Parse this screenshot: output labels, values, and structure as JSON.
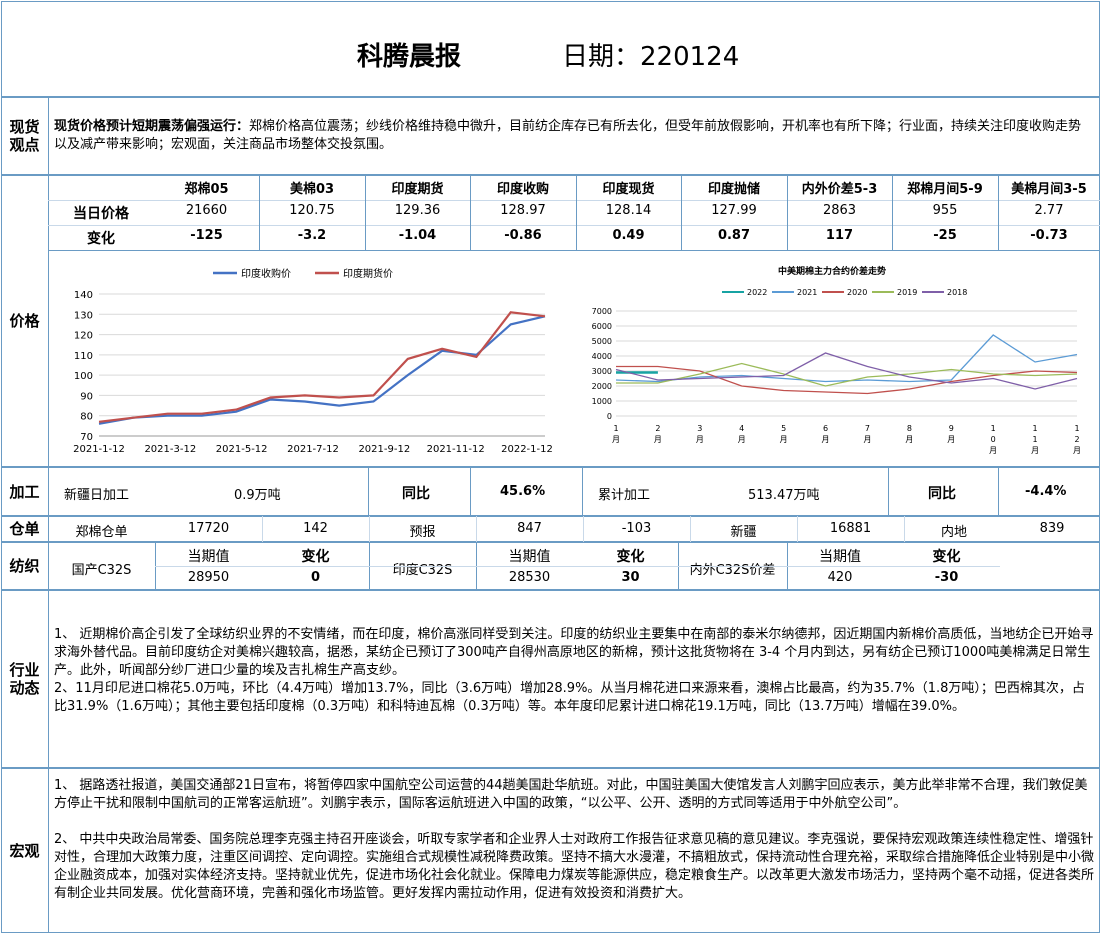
{
  "header": {
    "title": "科腾晨报",
    "date_label": "日期：220124"
  },
  "spot": {
    "label": "现货\n观点",
    "headline": "现货价格预计短期震荡偏强运行：",
    "text": "郑棉价格高位震荡；纱线价格维持稳中微升，目前纺企库存已有所去化，但受年前放假影响，开机率也有所下降；行业面，持续关注印度收购走势以及减产带来影响；宏观面，关注商品市场整体交投氛围。"
  },
  "price": {
    "label": "价格",
    "columns": [
      "郑棉05",
      "美棉03",
      "印度期货",
      "印度收购",
      "印度现货",
      "印度抛储",
      "内外价差5-3",
      "郑棉月间5-9",
      "美棉月间3-5"
    ],
    "row1_label": "当日价格",
    "row1": [
      "21660",
      "120.75",
      "129.36",
      "128.97",
      "128.14",
      "127.99",
      "2863",
      "955",
      "2.77"
    ],
    "row2_label": "变化",
    "row2": [
      "-125",
      "-3.2",
      "-1.04",
      "-0.86",
      "0.49",
      "0.87",
      "117",
      "-25",
      "-0.73"
    ]
  },
  "chart_data": [
    {
      "type": "line",
      "title": "",
      "legend_position": "top",
      "ylim": [
        70,
        140
      ],
      "yticks": [
        "70",
        "80",
        "90",
        "100",
        "110",
        "120",
        "130",
        "140"
      ],
      "xticks": [
        "2021-1-12",
        "2021-3-12",
        "2021-5-12",
        "2021-7-12",
        "2021-9-12",
        "2021-11-12",
        "2022-1-12"
      ],
      "x": [
        "2021-1-12",
        "2021-2-12",
        "2021-3-12",
        "2021-4-12",
        "2021-5-12",
        "2021-6-12",
        "2021-7-12",
        "2021-8-12",
        "2021-9-12",
        "2021-10-12",
        "2021-11-12",
        "2021-12-12",
        "2022-1-12",
        "2022-1-24"
      ],
      "series": [
        {
          "name": "印度收购价",
          "color": "#4472c4",
          "values": [
            76,
            79,
            80,
            80,
            82,
            88,
            87,
            85,
            87,
            100,
            112,
            110,
            125,
            129
          ]
        },
        {
          "name": "印度期货价",
          "color": "#c0504d",
          "values": [
            77,
            79,
            81,
            81,
            83,
            89,
            90,
            89,
            90,
            108,
            113,
            109,
            131,
            129
          ]
        }
      ]
    },
    {
      "type": "line",
      "title": "中美期棉主力合约价差走势",
      "legend_position": "top",
      "ylim": [
        0,
        7000
      ],
      "yticks": [
        "0",
        "1000",
        "2000",
        "3000",
        "4000",
        "5000",
        "6000",
        "7000"
      ],
      "xticks": [
        "1\n月",
        "2\n月",
        "3\n月",
        "4\n月",
        "5\n月",
        "6\n月",
        "7\n月",
        "8\n月",
        "9\n月",
        "1\n0\n月",
        "1\n1\n月",
        "1\n2\n月"
      ],
      "months": [
        1,
        2,
        3,
        4,
        5,
        6,
        7,
        8,
        9,
        10,
        11,
        12
      ],
      "series": [
        {
          "name": "2022",
          "color": "#17a3a3",
          "values": [
            2900,
            2900
          ]
        },
        {
          "name": "2021",
          "color": "#5b9bd5",
          "values": [
            2400,
            2300,
            2600,
            2700,
            2500,
            2300,
            2400,
            2300,
            2400,
            5400,
            3600,
            4100
          ]
        },
        {
          "name": "2020",
          "color": "#c0504d",
          "values": [
            3300,
            3300,
            3000,
            2000,
            1700,
            1600,
            1500,
            1800,
            2300,
            2700,
            3000,
            2900
          ]
        },
        {
          "name": "2019",
          "color": "#9bbb59",
          "values": [
            2200,
            2200,
            2800,
            3500,
            2800,
            2000,
            2600,
            2800,
            3100,
            2800,
            2700,
            2800
          ]
        },
        {
          "name": "2018",
          "color": "#7f5fa8",
          "values": [
            3100,
            2400,
            2500,
            2600,
            2700,
            4200,
            3300,
            2600,
            2200,
            2500,
            1800,
            2500
          ]
        }
      ]
    }
  ],
  "processing": {
    "label": "加工",
    "item1": "新疆日加工",
    "value1": "0.9万吨",
    "yoy_label1": "同比",
    "yoy1": "45.6%",
    "item2": "累计加工",
    "value2": "513.47万吨",
    "yoy_label2": "同比",
    "yoy2": "-4.4%"
  },
  "warehouse": {
    "label": "仓单",
    "cells": [
      "郑棉仓单",
      "17720",
      "142",
      "预报",
      "847",
      "-103",
      "新疆",
      "16881",
      "内地",
      "839"
    ]
  },
  "textile": {
    "label": "纺织",
    "g1_name": "国产C32S",
    "g1_h1": "当期值",
    "g1_h2": "变化",
    "g1_v1": "28950",
    "g1_v2": "0",
    "g2_name": "印度C32S",
    "g2_h1": "当期值",
    "g2_h2": "变化",
    "g2_v1": "28530",
    "g2_v2": "30",
    "g3_name": "内外C32S价差",
    "g3_h1": "当期值",
    "g3_h2": "变化",
    "g3_v1": "420",
    "g3_v2": "-30"
  },
  "industry": {
    "label": "行业\n动态",
    "p1": "1、 近期棉价高企引发了全球纺织业界的不安情绪，而在印度，棉价高涨同样受到关注。印度的纺织业主要集中在南部的泰米尔纳德邦，因近期国内新棉价高质低，当地纺企已开始寻求海外替代品。目前印度纺企对美棉兴趣较高，据悉，某纺企已预订了300吨产自得州高原地区的新棉，预计这批货物将在 3-4 个月内到达，另有纺企已预订1000吨美棉满足日常生产。此外，听闻部分纱厂进口少量的埃及吉扎棉生产高支纱。",
    "p2": "2、11月印尼进口棉花5.0万吨，环比（4.4万吨）增加13.7%，同比（3.6万吨）增加28.9%。从当月棉花进口来源来看，澳棉占比最高，约为35.7%（1.8万吨）；巴西棉其次，占比31.9%（1.6万吨）；其他主要包括印度棉（0.3万吨）和科特迪瓦棉（0.3万吨）等。本年度印尼累计进口棉花19.1万吨，同比（13.7万吨）增幅在39.0%。"
  },
  "macro": {
    "label": "宏观",
    "p1": "1、 据路透社报道，美国交通部21日宣布，将暂停四家中国航空公司运营的44趟美国赴华航班。对此，中国驻美国大使馆发言人刘鹏宇回应表示，美方此举非常不合理，我们敦促美方停止干扰和限制中国航司的正常客运航班”。刘鹏宇表示，国际客运航班进入中国的政策，“以公平、公开、透明的方式同等适用于中外航空公司”。",
    "p2": "2、 中共中央政治局常委、国务院总理李克强主持召开座谈会，听取专家学者和企业界人士对政府工作报告征求意见稿的意见建议。李克强说，要保持宏观政策连续性稳定性、增强针对性，合理加大政策力度，注重区间调控、定向调控。实施组合式规模性减税降费政策。坚持不搞大水漫灌，不搞粗放式，保持流动性合理充裕，采取综合措施降低企业特别是中小微企业融资成本，加强对实体经济支持。坚持就业优先，促进市场化社会化就业。保障电力煤炭等能源供应，稳定粮食生产。以改革更大激发市场活力，坚持两个毫不动摇，促进各类所有制企业共同发展。优化营商环境，完善和强化市场监管。更好发挥内需拉动作用，促进有效投资和消费扩大。"
  }
}
